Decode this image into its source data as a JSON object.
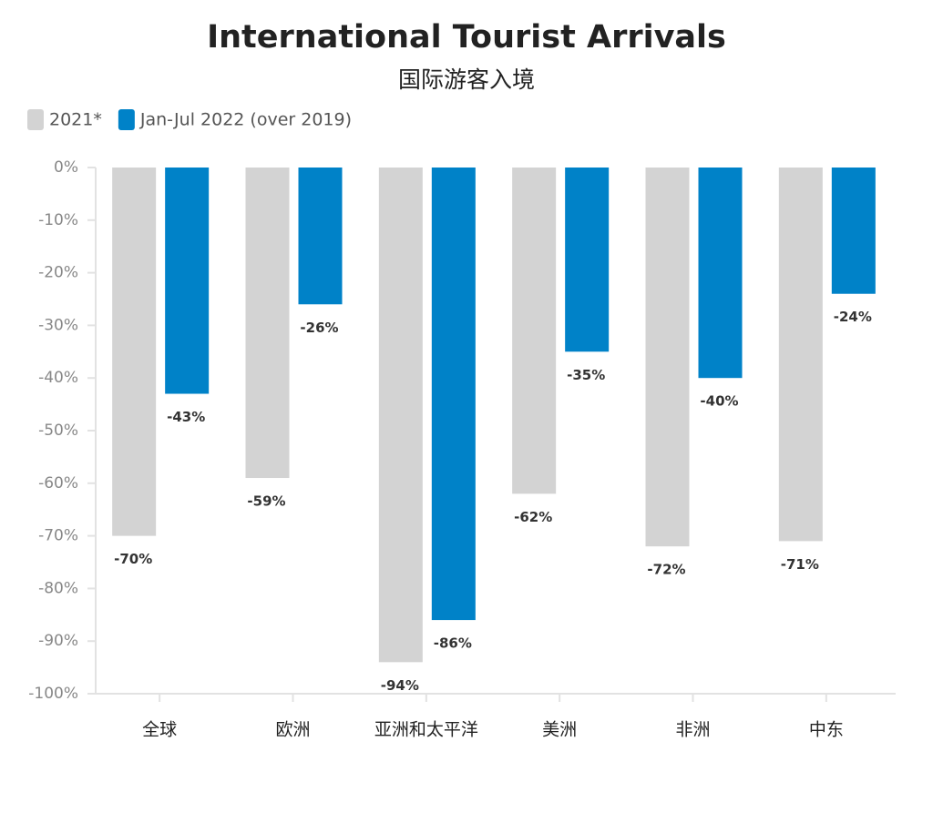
{
  "chart_data": {
    "type": "bar",
    "title": "International Tourist Arrivals",
    "subtitle": "国际游客入境",
    "categories": [
      "全球",
      "欧洲",
      "亚洲和太平洋",
      "美洲",
      "非洲",
      "中东"
    ],
    "series": [
      {
        "name": "2021*",
        "color": "#d3d3d3",
        "values": [
          -70,
          -59,
          -94,
          -62,
          -72,
          -71
        ],
        "value_labels": [
          "-70%",
          "-59%",
          "-94%",
          "-62%",
          "-72%",
          "-71%"
        ]
      },
      {
        "name": "Jan-Jul 2022 (over 2019)",
        "color": "#0082c8",
        "values": [
          -43,
          -26,
          -86,
          -35,
          -40,
          -24
        ],
        "value_labels": [
          "-43%",
          "-26%",
          "-86%",
          "-35%",
          "-40%",
          "-24%"
        ]
      }
    ],
    "ylim": [
      -100,
      0
    ],
    "yticks": [
      {
        "value": 0,
        "label": "0%"
      },
      {
        "value": -10,
        "label": "-10%"
      },
      {
        "value": -20,
        "label": "-20%"
      },
      {
        "value": -30,
        "label": "-30%"
      },
      {
        "value": -40,
        "label": "-40%"
      },
      {
        "value": -50,
        "label": "-50%"
      },
      {
        "value": -60,
        "label": "-60%"
      },
      {
        "value": -70,
        "label": "-70%"
      },
      {
        "value": -80,
        "label": "-80%"
      },
      {
        "value": -90,
        "label": "-90%"
      },
      {
        "value": -100,
        "label": "-100%"
      }
    ],
    "legend": "top-left",
    "grid": false
  }
}
